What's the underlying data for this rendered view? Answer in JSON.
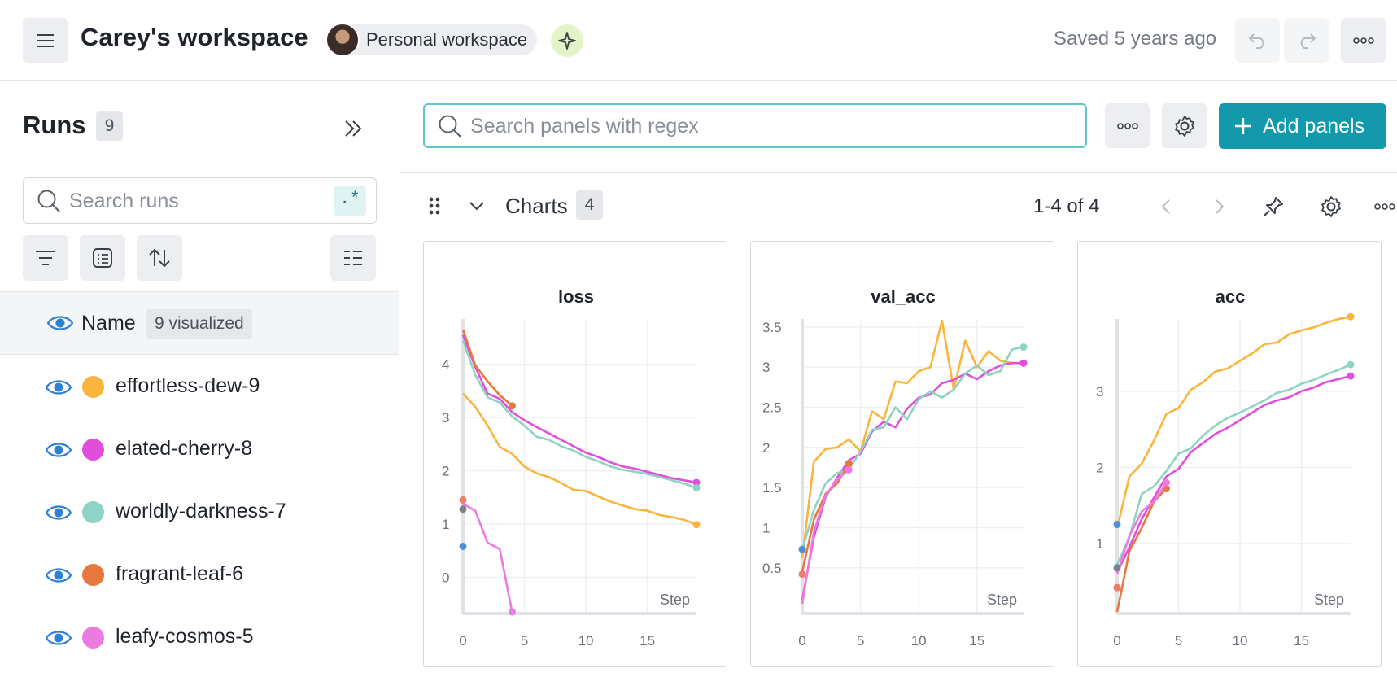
{
  "header": {
    "workspace_title": "Carey's workspace",
    "workspace_chip": "Personal workspace",
    "saved_status": "Saved 5 years ago"
  },
  "sidebar": {
    "title": "Runs",
    "run_count": "9",
    "search_placeholder": "Search runs",
    "regex_label": ".*",
    "name_column": "Name",
    "visualized_badge": "9 visualized",
    "runs": [
      {
        "name": "effortless-dew-9",
        "color": "#fbb43c"
      },
      {
        "name": "elated-cherry-8",
        "color": "#e04fdc"
      },
      {
        "name": "worldly-darkness-7",
        "color": "#8fd3c4"
      },
      {
        "name": "fragrant-leaf-6",
        "color": "#e8773d"
      },
      {
        "name": "leafy-cosmos-5",
        "color": "#ec7be0"
      }
    ]
  },
  "main": {
    "panel_search_placeholder": "Search panels with regex",
    "add_panels_label": "Add panels",
    "section_title": "Charts",
    "section_count": "4",
    "paging": "1-4 of 4"
  },
  "colors": {
    "accent": "#1399ab",
    "search_border": "#5cc8cc",
    "orange": "#fbb43c",
    "magenta": "#e04fdc",
    "teal": "#8fd3c4",
    "dark_orange": "#e8773d",
    "pink": "#ec7be0",
    "blue": "#4a90d9",
    "grey": "#7a7f88",
    "salmon": "#ef7d6b"
  },
  "chart_data": [
    {
      "type": "line",
      "title": "loss",
      "xlabel": "Step",
      "xlim": [
        0,
        19
      ],
      "ylim": [
        -0.65,
        4.85
      ],
      "xticks": [
        0,
        5,
        10,
        15
      ],
      "yticks": [
        0,
        1,
        2,
        3,
        4
      ],
      "ytick_labels": [
        "0",
        "1",
        "2",
        "3",
        "4"
      ],
      "series": [
        {
          "color": "#fbb43c",
          "x": [
            0,
            1,
            2,
            3,
            4,
            5,
            6,
            7,
            8,
            9,
            10,
            11,
            12,
            13,
            14,
            15,
            16,
            17,
            18,
            19
          ],
          "y": [
            3.45,
            3.2,
            2.85,
            2.45,
            2.32,
            2.08,
            1.95,
            1.88,
            1.77,
            1.64,
            1.62,
            1.52,
            1.42,
            1.35,
            1.28,
            1.25,
            1.17,
            1.13,
            1.08,
            0.99
          ]
        },
        {
          "color": "#e04fdc",
          "x": [
            0,
            1,
            2,
            3,
            4,
            5,
            6,
            7,
            8,
            9,
            10,
            11,
            12,
            13,
            14,
            15,
            16,
            17,
            18,
            19
          ],
          "y": [
            4.55,
            3.95,
            3.45,
            3.35,
            3.1,
            2.95,
            2.82,
            2.7,
            2.58,
            2.46,
            2.34,
            2.26,
            2.16,
            2.08,
            2.04,
            1.98,
            1.92,
            1.86,
            1.82,
            1.78
          ]
        },
        {
          "color": "#8fd3c4",
          "x": [
            0,
            1,
            2,
            3,
            4,
            5,
            6,
            7,
            8,
            9,
            10,
            11,
            12,
            13,
            14,
            15,
            16,
            17,
            18,
            19
          ],
          "y": [
            4.45,
            3.8,
            3.38,
            3.28,
            3.02,
            2.85,
            2.64,
            2.58,
            2.46,
            2.38,
            2.26,
            2.18,
            2.08,
            2.02,
            1.98,
            1.94,
            1.88,
            1.82,
            1.76,
            1.68
          ]
        },
        {
          "color": "#e8773d",
          "x": [
            0,
            1,
            2,
            3,
            4
          ],
          "y": [
            4.65,
            3.98,
            3.68,
            3.42,
            3.22
          ]
        },
        {
          "color": "#ec7be0",
          "x": [
            0,
            1,
            2,
            3,
            4
          ],
          "y": [
            1.38,
            1.25,
            0.65,
            0.53,
            -0.65
          ]
        },
        {
          "color": "#ef7d6b",
          "x": [
            0
          ],
          "y": [
            1.45
          ]
        },
        {
          "color": "#7a7f88",
          "x": [
            0
          ],
          "y": [
            1.28
          ]
        },
        {
          "color": "#4a90d9",
          "x": [
            0
          ],
          "y": [
            0.58
          ]
        }
      ]
    },
    {
      "type": "line",
      "title": "val_acc",
      "xlabel": "Step",
      "xlim": [
        0,
        19
      ],
      "ylim": [
        -0.05,
        3.6
      ],
      "xticks": [
        0,
        5,
        10,
        15
      ],
      "yticks": [
        0.5,
        1,
        1.5,
        2,
        2.5,
        3,
        3.5
      ],
      "ytick_labels": [
        "0.5",
        "1",
        "1.5",
        "2",
        "2.5",
        "3",
        "3.5"
      ],
      "series": [
        {
          "color": "#fbb43c",
          "x": [
            0,
            1,
            2,
            3,
            4,
            5,
            6,
            7,
            8,
            9,
            10,
            11,
            12,
            13,
            14,
            15,
            16,
            17,
            18,
            19
          ],
          "y": [
            0.62,
            1.82,
            1.98,
            2.0,
            2.1,
            1.95,
            2.45,
            2.35,
            2.82,
            2.8,
            2.95,
            3.0,
            3.58,
            2.72,
            3.33,
            3.0,
            3.2,
            3.08,
            3.05,
            3.05
          ]
        },
        {
          "color": "#e04fdc",
          "x": [
            0,
            1,
            2,
            3,
            4,
            5,
            6,
            7,
            8,
            9,
            10,
            11,
            12,
            13,
            14,
            15,
            16,
            17,
            18,
            19
          ],
          "y": [
            0.1,
            0.88,
            1.38,
            1.62,
            1.84,
            1.92,
            2.2,
            2.32,
            2.25,
            2.48,
            2.62,
            2.66,
            2.8,
            2.84,
            2.92,
            2.85,
            2.95,
            3.02,
            3.05,
            3.05
          ]
        },
        {
          "color": "#8fd3c4",
          "x": [
            0,
            1,
            2,
            3,
            4,
            5,
            6,
            7,
            8,
            9,
            10,
            11,
            12,
            13,
            14,
            15,
            16,
            17,
            18,
            19
          ],
          "y": [
            0.72,
            1.22,
            1.55,
            1.68,
            1.72,
            1.95,
            2.22,
            2.25,
            2.5,
            2.35,
            2.6,
            2.7,
            2.62,
            2.72,
            2.92,
            3.02,
            2.9,
            2.95,
            3.22,
            3.25
          ]
        },
        {
          "color": "#e8773d",
          "x": [
            0,
            1,
            2,
            3,
            4
          ],
          "y": [
            0.45,
            1.1,
            1.42,
            1.55,
            1.8
          ]
        },
        {
          "color": "#ec7be0",
          "x": [
            0,
            1,
            2,
            3,
            4
          ],
          "y": [
            0.05,
            0.95,
            1.4,
            1.6,
            1.72
          ]
        },
        {
          "color": "#4a90d9",
          "x": [
            0
          ],
          "y": [
            0.73
          ]
        },
        {
          "color": "#ef7d6b",
          "x": [
            0
          ],
          "y": [
            0.42
          ]
        }
      ]
    },
    {
      "type": "line",
      "title": "acc",
      "xlabel": "Step",
      "xlim": [
        0,
        19
      ],
      "ylim": [
        0.1,
        3.95
      ],
      "xticks": [
        0,
        5,
        10,
        15
      ],
      "yticks": [
        1,
        2,
        3
      ],
      "ytick_labels": [
        "1",
        "2",
        "3"
      ],
      "series": [
        {
          "color": "#fbb43c",
          "x": [
            0,
            1,
            2,
            3,
            4,
            5,
            6,
            7,
            8,
            9,
            10,
            11,
            12,
            13,
            14,
            15,
            16,
            17,
            18,
            19
          ],
          "y": [
            1.2,
            1.88,
            2.05,
            2.35,
            2.7,
            2.78,
            3.02,
            3.12,
            3.26,
            3.3,
            3.4,
            3.5,
            3.62,
            3.64,
            3.75,
            3.8,
            3.84,
            3.9,
            3.95,
            3.98
          ]
        },
        {
          "color": "#e04fdc",
          "x": [
            0,
            1,
            2,
            3,
            4,
            5,
            6,
            7,
            8,
            9,
            10,
            11,
            12,
            13,
            14,
            15,
            16,
            17,
            18,
            19
          ],
          "y": [
            0.62,
            0.95,
            1.32,
            1.6,
            1.88,
            1.98,
            2.2,
            2.32,
            2.44,
            2.52,
            2.62,
            2.72,
            2.82,
            2.88,
            2.92,
            3.0,
            3.05,
            3.12,
            3.16,
            3.2
          ]
        },
        {
          "color": "#8fd3c4",
          "x": [
            0,
            1,
            2,
            3,
            4,
            5,
            6,
            7,
            8,
            9,
            10,
            11,
            12,
            13,
            14,
            15,
            16,
            17,
            18,
            19
          ],
          "y": [
            0.72,
            1.08,
            1.65,
            1.75,
            1.95,
            2.18,
            2.25,
            2.42,
            2.55,
            2.65,
            2.72,
            2.8,
            2.88,
            2.98,
            3.02,
            3.1,
            3.15,
            3.22,
            3.28,
            3.35
          ]
        },
        {
          "color": "#e8773d",
          "x": [
            0,
            1,
            2,
            3,
            4
          ],
          "y": [
            0.1,
            0.9,
            1.2,
            1.55,
            1.72
          ]
        },
        {
          "color": "#ec7be0",
          "x": [
            0,
            1,
            2,
            3,
            4
          ],
          "y": [
            0.6,
            1.1,
            1.42,
            1.55,
            1.8
          ]
        },
        {
          "color": "#4a90d9",
          "x": [
            0
          ],
          "y": [
            1.25
          ]
        },
        {
          "color": "#7a7f88",
          "x": [
            0
          ],
          "y": [
            0.68
          ]
        },
        {
          "color": "#ef7d6b",
          "x": [
            0
          ],
          "y": [
            0.42
          ]
        }
      ]
    }
  ]
}
